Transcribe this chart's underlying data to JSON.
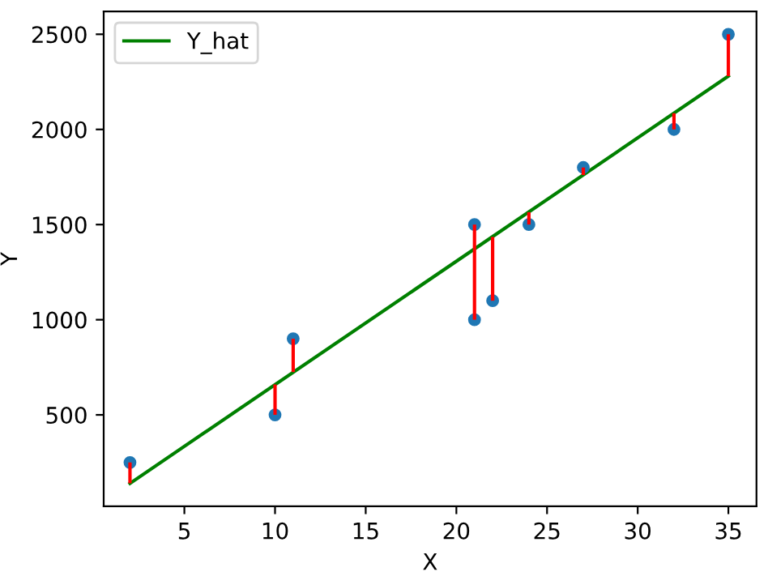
{
  "chart_data": {
    "type": "scatter",
    "xlabel": "X",
    "ylabel": "Y",
    "xlim": [
      0.55,
      36.55
    ],
    "ylim": [
      20,
      2620
    ],
    "xticks": [
      5,
      10,
      15,
      20,
      25,
      30,
      35
    ],
    "yticks": [
      500,
      1000,
      1500,
      2000,
      2500
    ],
    "grid": false,
    "legend": "top left",
    "series": [
      {
        "color": "#1f77b4",
        "x": [
          2,
          10,
          11,
          21,
          21,
          22,
          24,
          27,
          32,
          35
        ],
        "values": [
          250,
          500,
          900,
          1000,
          1500,
          1100,
          1500,
          1800,
          2000,
          2500
        ],
        "errors": [
          [
            140,
            250
          ],
          [
            500,
            660
          ],
          [
            725,
            900
          ],
          [
            1000,
            1370
          ],
          [
            1370,
            1500
          ],
          [
            1100,
            1435
          ],
          [
            1500,
            1565
          ],
          [
            1760,
            1800
          ],
          [
            2000,
            2085
          ],
          [
            2280,
            2500
          ]
        ]
      },
      {
        "type": "line",
        "name": "Y_hat",
        "color": "#008000",
        "x": [
          2,
          35
        ],
        "values": [
          140,
          2280
        ]
      }
    ]
  }
}
